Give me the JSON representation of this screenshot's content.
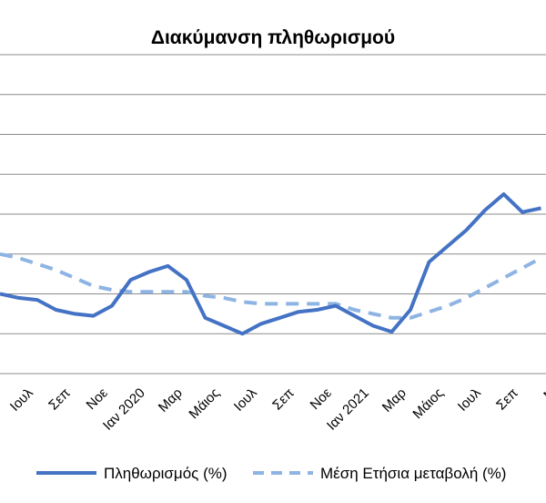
{
  "chart_data": {
    "type": "line",
    "title": "Διακύμανση  πληθωρισμού",
    "xlabel": "",
    "ylabel": "",
    "grid": true,
    "legend_position": "bottom",
    "x_tick_labels": [
      "Ιουλ",
      "Σεπ",
      "Νοε",
      "Ιαν 2020",
      "Μαρ",
      "Μάιος",
      "Ιουλ",
      "Σεπ",
      "Νοε",
      "Ιαν 2021",
      "Μαρ",
      "Μάιος",
      "Ιουλ",
      "Σεπ",
      "Ν"
    ],
    "series": [
      {
        "name": "Πληθωρισμός (%)",
        "color": "#4472C4",
        "style": "solid",
        "values": [
          0.0,
          -0.1,
          -0.15,
          -0.4,
          -0.5,
          -0.55,
          -0.3,
          0.35,
          0.55,
          0.7,
          0.35,
          -0.6,
          -0.8,
          -1.0,
          -0.75,
          -0.6,
          -0.45,
          -0.4,
          -0.3,
          -0.55,
          -0.8,
          -0.95,
          -0.4,
          0.8,
          1.2,
          1.6,
          2.1,
          2.5,
          2.05,
          2.15
        ]
      },
      {
        "name": "Μέση Ετήσια μεταβολή (%)",
        "color": "#8EB4E3",
        "style": "dashed",
        "values": [
          1.0,
          0.9,
          0.75,
          0.6,
          0.4,
          0.2,
          0.1,
          0.05,
          0.05,
          0.05,
          0.05,
          -0.05,
          -0.1,
          -0.2,
          -0.25,
          -0.25,
          -0.25,
          -0.25,
          -0.25,
          -0.4,
          -0.5,
          -0.6,
          -0.6,
          -0.45,
          -0.3,
          -0.1,
          0.15,
          0.4,
          0.65,
          0.9
        ]
      }
    ]
  }
}
